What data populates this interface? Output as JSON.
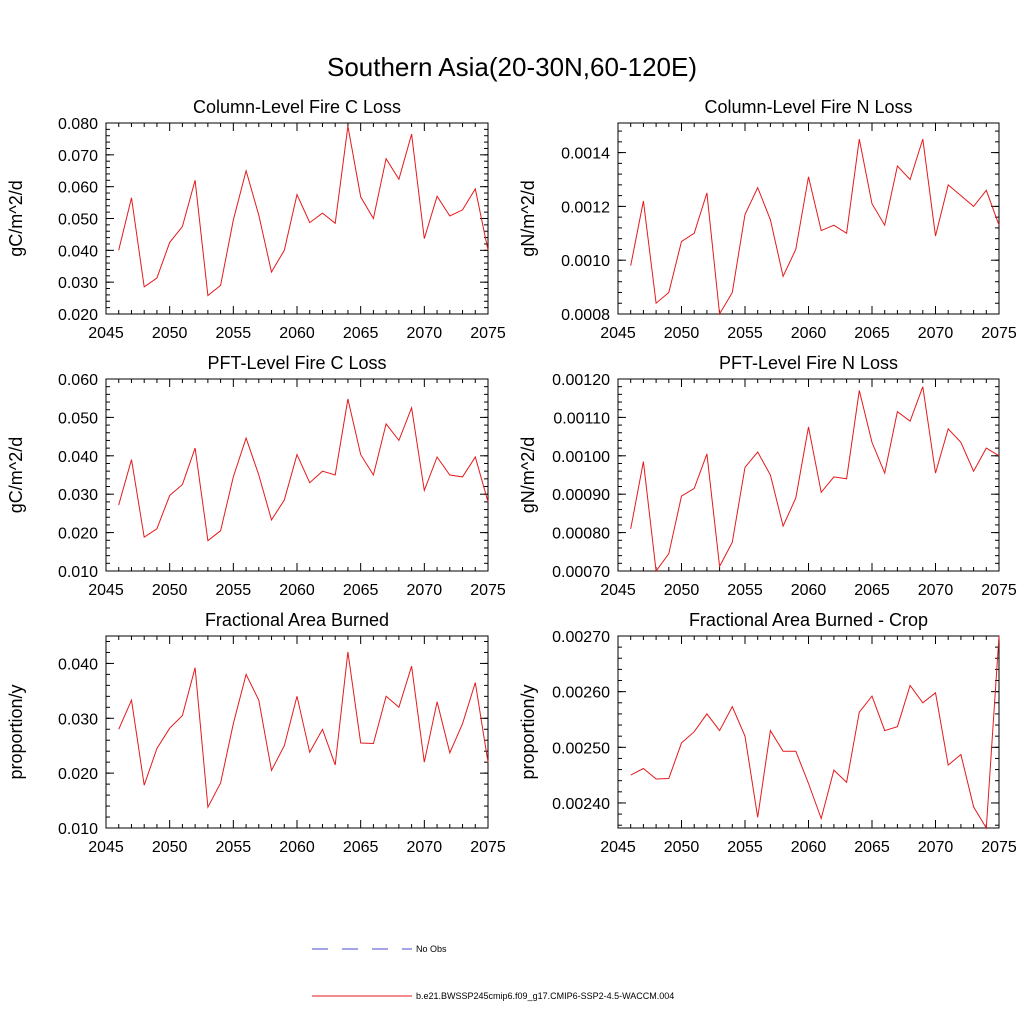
{
  "title": "Southern Asia(20-30N,60-120E)",
  "colors": {
    "series": "#e41a1c",
    "obs": "#4a4ad0",
    "axis": "#000000"
  },
  "legend": {
    "obs_label": "No Obs",
    "model_label": "b.e21.BWSSP245cmip6.f09_g17.CMIP6-SSP2-4.5-WACCM.004"
  },
  "chart_data": [
    {
      "type": "line",
      "title": "Column-Level Fire C Loss",
      "ylabel": "gC/m^2/d",
      "xlim": [
        2045,
        2075
      ],
      "ylim": [
        0.02,
        0.08
      ],
      "xticks": [
        2045,
        2050,
        2055,
        2060,
        2065,
        2070,
        2075
      ],
      "xticklabels": [
        "2045",
        "2050",
        "2055",
        "2060",
        "2065",
        "2070",
        "2075"
      ],
      "yticks": [
        0.02,
        0.03,
        0.04,
        0.05,
        0.06,
        0.07,
        0.08
      ],
      "yticklabels": [
        "0.020",
        "0.030",
        "0.040",
        "0.050",
        "0.060",
        "0.070",
        "0.080"
      ],
      "x": [
        2046,
        2047,
        2048,
        2049,
        2050,
        2051,
        2052,
        2053,
        2054,
        2055,
        2056,
        2057,
        2058,
        2059,
        2060,
        2061,
        2062,
        2063,
        2064,
        2065,
        2066,
        2067,
        2068,
        2069,
        2070,
        2071,
        2072,
        2073,
        2074,
        2075
      ],
      "values": [
        0.04,
        0.0565,
        0.0285,
        0.0313,
        0.0425,
        0.0475,
        0.062,
        0.0258,
        0.029,
        0.0495,
        0.065,
        0.051,
        0.0332,
        0.04,
        0.0575,
        0.0487,
        0.0517,
        0.0485,
        0.079,
        0.0568,
        0.05,
        0.0688,
        0.0623,
        0.0765,
        0.0437,
        0.057,
        0.0508,
        0.0527,
        0.0593,
        0.04
      ]
    },
    {
      "type": "line",
      "title": "Column-Level Fire N Loss",
      "ylabel": "gN/m^2/d",
      "xlim": [
        2045,
        2075
      ],
      "ylim": [
        0.0008,
        0.00151
      ],
      "xticks": [
        2045,
        2050,
        2055,
        2060,
        2065,
        2070,
        2075
      ],
      "xticklabels": [
        "2045",
        "2050",
        "2055",
        "2060",
        "2065",
        "2070",
        "2075"
      ],
      "yticks": [
        0.0008,
        0.001,
        0.0012,
        0.0014
      ],
      "yticklabels": [
        "0.0008",
        "0.0010",
        "0.0012",
        "0.0014"
      ],
      "x": [
        2046,
        2047,
        2048,
        2049,
        2050,
        2051,
        2052,
        2053,
        2054,
        2055,
        2056,
        2057,
        2058,
        2059,
        2060,
        2061,
        2062,
        2063,
        2064,
        2065,
        2066,
        2067,
        2068,
        2069,
        2070,
        2071,
        2072,
        2073,
        2074,
        2075
      ],
      "values": [
        0.00098,
        0.00122,
        0.00084,
        0.00088,
        0.00107,
        0.0011,
        0.00125,
        0.0008,
        0.00088,
        0.00117,
        0.00127,
        0.00115,
        0.00094,
        0.00104,
        0.00131,
        0.00111,
        0.00113,
        0.0011,
        0.00145,
        0.00121,
        0.00113,
        0.00135,
        0.0013,
        0.00145,
        0.00109,
        0.00128,
        0.00124,
        0.0012,
        0.00126,
        0.00113
      ]
    },
    {
      "type": "line",
      "title": "PFT-Level Fire C Loss",
      "ylabel": "gC/m^2/d",
      "xlim": [
        2045,
        2075
      ],
      "ylim": [
        0.01,
        0.06
      ],
      "xticks": [
        2045,
        2050,
        2055,
        2060,
        2065,
        2070,
        2075
      ],
      "xticklabels": [
        "2045",
        "2050",
        "2055",
        "2060",
        "2065",
        "2070",
        "2075"
      ],
      "yticks": [
        0.01,
        0.02,
        0.03,
        0.04,
        0.05,
        0.06
      ],
      "yticklabels": [
        "0.010",
        "0.020",
        "0.030",
        "0.040",
        "0.050",
        "0.060"
      ],
      "x": [
        2046,
        2047,
        2048,
        2049,
        2050,
        2051,
        2052,
        2053,
        2054,
        2055,
        2056,
        2057,
        2058,
        2059,
        2060,
        2061,
        2062,
        2063,
        2064,
        2065,
        2066,
        2067,
        2068,
        2069,
        2070,
        2071,
        2072,
        2073,
        2074,
        2075
      ],
      "values": [
        0.0272,
        0.039,
        0.0188,
        0.021,
        0.0297,
        0.0325,
        0.042,
        0.0179,
        0.0205,
        0.0345,
        0.0446,
        0.035,
        0.0233,
        0.0285,
        0.0403,
        0.033,
        0.036,
        0.035,
        0.0548,
        0.0403,
        0.035,
        0.0483,
        0.044,
        0.0525,
        0.031,
        0.0397,
        0.035,
        0.0345,
        0.0397,
        0.028
      ]
    },
    {
      "type": "line",
      "title": "PFT-Level Fire N Loss",
      "ylabel": "gN/m^2/d",
      "xlim": [
        2045,
        2075
      ],
      "ylim": [
        0.0007,
        0.0012
      ],
      "xticks": [
        2045,
        2050,
        2055,
        2060,
        2065,
        2070,
        2075
      ],
      "xticklabels": [
        "2045",
        "2050",
        "2055",
        "2060",
        "2065",
        "2070",
        "2075"
      ],
      "yticks": [
        0.0007,
        0.0008,
        0.0009,
        0.001,
        0.0011,
        0.0012
      ],
      "yticklabels": [
        "0.00070",
        "0.00080",
        "0.00090",
        "0.00100",
        "0.00110",
        "0.00120"
      ],
      "x": [
        2046,
        2047,
        2048,
        2049,
        2050,
        2051,
        2052,
        2053,
        2054,
        2055,
        2056,
        2057,
        2058,
        2059,
        2060,
        2061,
        2062,
        2063,
        2064,
        2065,
        2066,
        2067,
        2068,
        2069,
        2070,
        2071,
        2072,
        2073,
        2074,
        2075
      ],
      "values": [
        0.00081,
        0.000985,
        0.0007,
        0.000745,
        0.000895,
        0.000915,
        0.001005,
        0.000712,
        0.000775,
        0.00097,
        0.00101,
        0.00095,
        0.000817,
        0.00089,
        0.001075,
        0.000905,
        0.000945,
        0.00094,
        0.00117,
        0.001035,
        0.000955,
        0.001115,
        0.00109,
        0.00118,
        0.000955,
        0.00107,
        0.001035,
        0.00096,
        0.00102,
        0.001
      ]
    },
    {
      "type": "line",
      "title": "Fractional Area Burned",
      "ylabel": "proportion/y",
      "xlim": [
        2045,
        2075
      ],
      "ylim": [
        0.01,
        0.045
      ],
      "xticks": [
        2045,
        2050,
        2055,
        2060,
        2065,
        2070,
        2075
      ],
      "xticklabels": [
        "2045",
        "2050",
        "2055",
        "2060",
        "2065",
        "2070",
        "2075"
      ],
      "yticks": [
        0.01,
        0.02,
        0.03,
        0.04
      ],
      "yticklabels": [
        "0.010",
        "0.020",
        "0.030",
        "0.040"
      ],
      "x": [
        2046,
        2047,
        2048,
        2049,
        2050,
        2051,
        2052,
        2053,
        2054,
        2055,
        2056,
        2057,
        2058,
        2059,
        2060,
        2061,
        2062,
        2063,
        2064,
        2065,
        2066,
        2067,
        2068,
        2069,
        2070,
        2071,
        2072,
        2073,
        2074,
        2075
      ],
      "values": [
        0.028,
        0.0333,
        0.0178,
        0.0245,
        0.0282,
        0.0305,
        0.0392,
        0.0138,
        0.0182,
        0.029,
        0.038,
        0.0333,
        0.0205,
        0.025,
        0.034,
        0.0238,
        0.028,
        0.0215,
        0.0421,
        0.0255,
        0.0254,
        0.034,
        0.032,
        0.0395,
        0.022,
        0.033,
        0.0237,
        0.029,
        0.0365,
        0.022
      ]
    },
    {
      "type": "line",
      "title": "Fractional Area Burned - Crop",
      "ylabel": "proportion/y",
      "xlim": [
        2045,
        2075
      ],
      "ylim": [
        0.002355,
        0.0027
      ],
      "xticks": [
        2045,
        2050,
        2055,
        2060,
        2065,
        2070,
        2075
      ],
      "xticklabels": [
        "2045",
        "2050",
        "2055",
        "2060",
        "2065",
        "2070",
        "2075"
      ],
      "yticks": [
        0.0024,
        0.0025,
        0.0026,
        0.0027
      ],
      "yticklabels": [
        "0.00240",
        "0.00250",
        "0.00260",
        "0.00270"
      ],
      "x": [
        2046,
        2047,
        2048,
        2049,
        2050,
        2051,
        2052,
        2053,
        2054,
        2055,
        2056,
        2057,
        2058,
        2059,
        2060,
        2061,
        2062,
        2063,
        2064,
        2065,
        2066,
        2067,
        2068,
        2069,
        2070,
        2071,
        2072,
        2073,
        2074,
        2075
      ],
      "values": [
        0.00245,
        0.002462,
        0.002443,
        0.002444,
        0.002508,
        0.002528,
        0.00256,
        0.00253,
        0.002573,
        0.00252,
        0.002374,
        0.00253,
        0.002493,
        0.002493,
        0.002435,
        0.002372,
        0.002459,
        0.002437,
        0.002563,
        0.002592,
        0.00253,
        0.002537,
        0.002611,
        0.00258,
        0.002598,
        0.002468,
        0.002487,
        0.002393,
        0.002355,
        0.0027
      ]
    }
  ]
}
